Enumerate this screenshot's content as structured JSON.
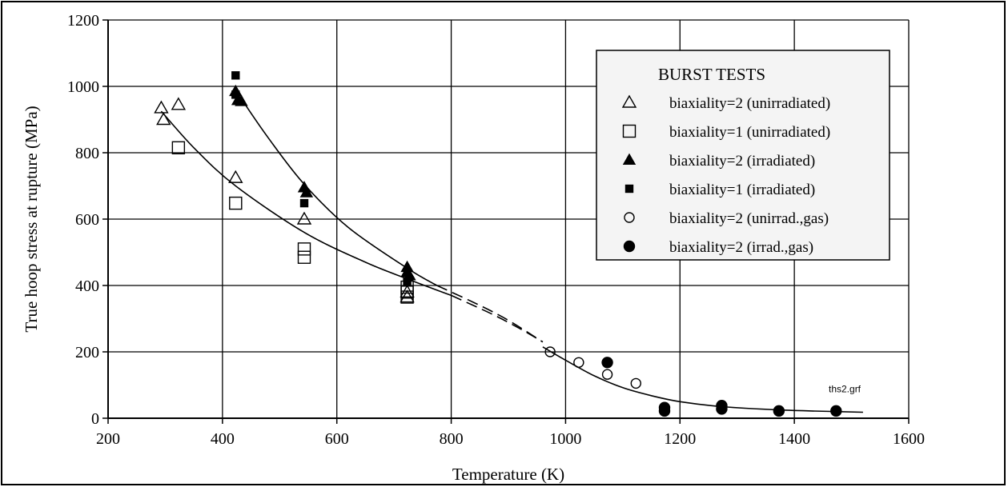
{
  "chart_data": {
    "type": "scatter",
    "xlabel": "Temperature (K)",
    "ylabel": "True hoop stress at rupture (MPa)",
    "xlim": [
      200,
      1600
    ],
    "ylim": [
      0,
      1200
    ],
    "xticks": [
      200,
      400,
      600,
      800,
      1000,
      1200,
      1400,
      1600
    ],
    "yticks": [
      0,
      200,
      400,
      600,
      800,
      1000,
      1200
    ],
    "grid": true,
    "legend_title": "BURST TESTS",
    "legend_position": "top-right",
    "annotation": "ths2.grf",
    "series": [
      {
        "name": "biaxiality=2 (unirradiated)",
        "marker": "triangle-open",
        "points": [
          [
            293,
            935
          ],
          [
            297,
            900
          ],
          [
            323,
            945
          ],
          [
            423,
            725
          ],
          [
            543,
            600
          ],
          [
            723,
            380
          ],
          [
            723,
            365
          ]
        ]
      },
      {
        "name": "biaxiality=1 (unirradiated)",
        "marker": "square-open",
        "points": [
          [
            323,
            815
          ],
          [
            423,
            648
          ],
          [
            543,
            510
          ],
          [
            543,
            485
          ],
          [
            723,
            395
          ],
          [
            723,
            380
          ],
          [
            723,
            365
          ]
        ]
      },
      {
        "name": "biaxiality=2 (irradiated)",
        "marker": "triangle-filled",
        "points": [
          [
            423,
            985
          ],
          [
            427,
            958
          ],
          [
            433,
            955
          ],
          [
            543,
            695
          ],
          [
            547,
            680
          ],
          [
            723,
            455
          ],
          [
            723,
            440
          ],
          [
            727,
            430
          ]
        ]
      },
      {
        "name": "biaxiality=1 (irradiated)",
        "marker": "square-filled",
        "points": [
          [
            423,
            1033
          ],
          [
            423,
            975
          ],
          [
            543,
            648
          ],
          [
            723,
            410
          ]
        ]
      },
      {
        "name": "biaxiality=2 (unirrad.,gas)",
        "marker": "circle-open",
        "points": [
          [
            973,
            200
          ],
          [
            1023,
            168
          ],
          [
            1073,
            132
          ],
          [
            1123,
            105
          ]
        ]
      },
      {
        "name": "biaxiality=2 (irrad.,gas)",
        "marker": "circle-filled",
        "points": [
          [
            1073,
            168
          ],
          [
            1173,
            32
          ],
          [
            1173,
            22
          ],
          [
            1273,
            38
          ],
          [
            1273,
            28
          ],
          [
            1373,
            22
          ],
          [
            1473,
            22
          ]
        ]
      }
    ],
    "fit_curves": [
      {
        "style": "solid",
        "points": [
          [
            293,
            925
          ],
          [
            350,
            815
          ],
          [
            423,
            700
          ],
          [
            543,
            560
          ],
          [
            650,
            470
          ],
          [
            723,
            420
          ],
          [
            800,
            370
          ]
        ]
      },
      {
        "style": "solid",
        "points": [
          [
            430,
            970
          ],
          [
            480,
            845
          ],
          [
            543,
            705
          ],
          [
            620,
            575
          ],
          [
            723,
            452
          ],
          [
            775,
            400
          ]
        ]
      },
      {
        "style": "dashed",
        "points": [
          [
            775,
            400
          ],
          [
            850,
            340
          ],
          [
            900,
            295
          ],
          [
            960,
            230
          ]
        ]
      },
      {
        "style": "dashed",
        "points": [
          [
            800,
            370
          ],
          [
            870,
            315
          ],
          [
            920,
            270
          ],
          [
            960,
            230
          ]
        ]
      },
      {
        "style": "solid",
        "points": [
          [
            960,
            215
          ],
          [
            1000,
            175
          ],
          [
            1050,
            128
          ],
          [
            1100,
            92
          ],
          [
            1150,
            68
          ],
          [
            1200,
            50
          ],
          [
            1273,
            35
          ],
          [
            1373,
            25
          ],
          [
            1473,
            20
          ],
          [
            1520,
            18
          ]
        ]
      }
    ]
  }
}
